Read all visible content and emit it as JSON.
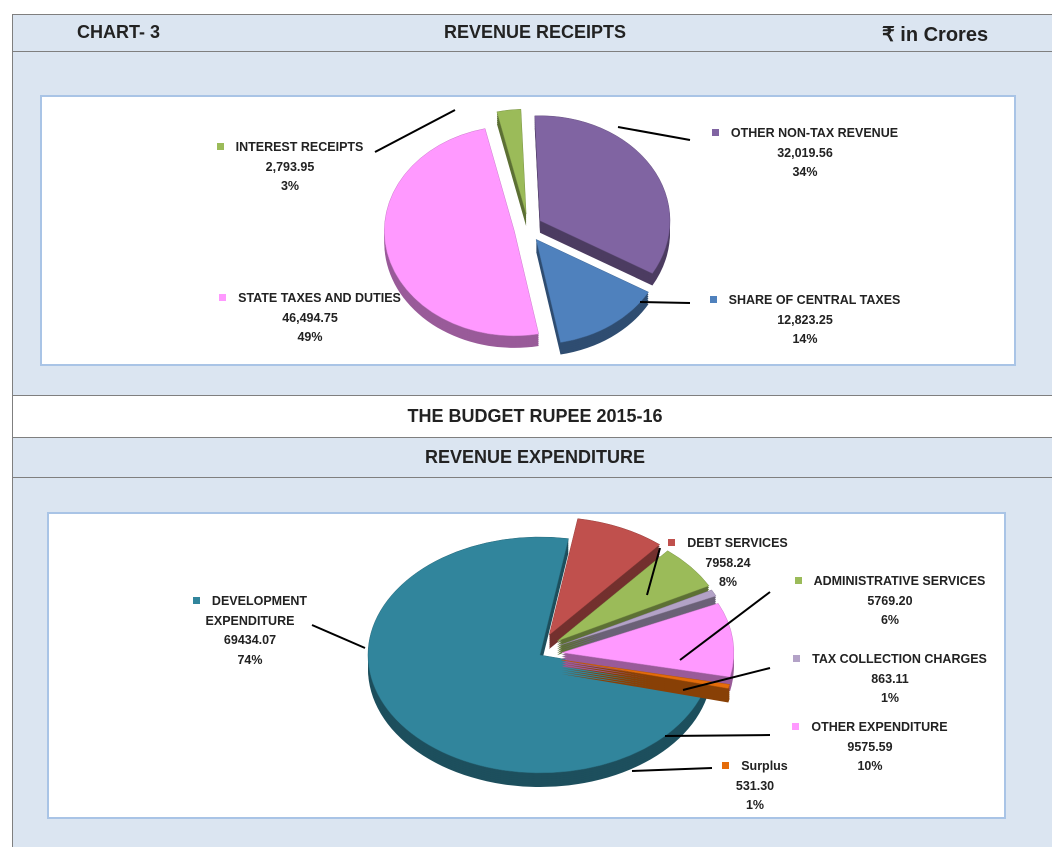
{
  "header": {
    "chart_no": "CHART- 3",
    "unit": "₹ in Crores"
  },
  "middle_title": "THE BUDGET RUPEE 2015-16",
  "chart_data": [
    {
      "type": "pie",
      "title": "REVENUE RECEIPTS",
      "categories": [
        "INTEREST RECEIPTS",
        "OTHER NON-TAX REVENUE",
        "SHARE OF CENTRAL TAXES",
        "STATE TAXES AND DUTIES"
      ],
      "values": [
        2793.95,
        32019.56,
        12823.25,
        46494.75
      ],
      "value_labels": [
        "2,793.95",
        "32,019.56",
        "12,823.25",
        "46,494.75"
      ],
      "percents": [
        {
          "value": 3,
          "label": "3%"
        },
        {
          "value": 34,
          "label": "34%"
        },
        {
          "value": 14,
          "label": "14%"
        },
        {
          "value": 49,
          "label": "49%"
        }
      ],
      "colors": [
        "#9bbb59",
        "#8064a2",
        "#4f81bd",
        "#ff99ff"
      ]
    },
    {
      "type": "pie",
      "title": "REVENUE EXPENDITURE",
      "categories": [
        "DEVELOPMENT EXPENDITURE",
        "DEBT SERVICES",
        "ADMINISTRATIVE SERVICES",
        "TAX COLLECTION CHARGES",
        "OTHER EXPENDITURE",
        "Surplus"
      ],
      "values": [
        69434.07,
        7958.24,
        5769.2,
        863.11,
        9575.59,
        531.3
      ],
      "value_labels": [
        "69434.07",
        "7958.24",
        "5769.20",
        "863.11",
        "9575.59",
        "531.30"
      ],
      "percents": [
        {
          "value": 74,
          "label": "74%"
        },
        {
          "value": 8,
          "label": "8%"
        },
        {
          "value": 6,
          "label": "6%"
        },
        {
          "value": 1,
          "label": "1%"
        },
        {
          "value": 10,
          "label": "10%"
        },
        {
          "value": 1,
          "label": "1%"
        }
      ],
      "colors": [
        "#31859c",
        "#c0504d",
        "#9bbb59",
        "#b3a2c7",
        "#ff99ff",
        "#e46c0a"
      ]
    }
  ]
}
